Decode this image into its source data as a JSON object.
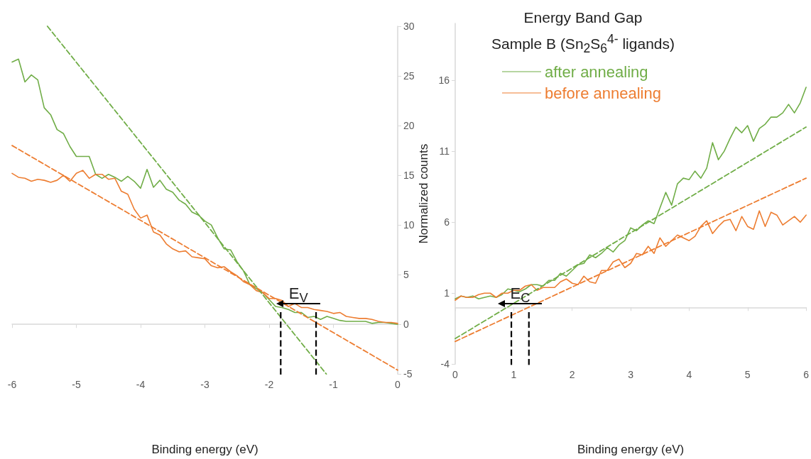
{
  "chart_data": [
    {
      "type": "line",
      "xlabel": "Binding energy (eV)",
      "xlim": [
        -6,
        0
      ],
      "xticks": [
        -6,
        -5,
        -4,
        -3,
        -2,
        -1,
        0
      ],
      "ylim": [
        -5,
        30
      ],
      "yticks": [
        -5,
        0,
        5,
        10,
        15,
        20,
        25,
        30
      ],
      "marker": "none",
      "series": [
        {
          "color": "#70ad47",
          "x": [
            -6.0,
            -5.9,
            -5.8,
            -5.7,
            -5.6,
            -5.5,
            -5.4,
            -5.3,
            -5.2,
            -5.1,
            -5.0,
            -4.9,
            -4.8,
            -4.7,
            -4.6,
            -4.5,
            -4.4,
            -4.3,
            -4.2,
            -4.1,
            -4.0,
            -3.9,
            -3.8,
            -3.7,
            -3.6,
            -3.5,
            -3.4,
            -3.3,
            -3.2,
            -3.1,
            -3.0,
            -2.9,
            -2.8,
            -2.7,
            -2.6,
            -2.5,
            -2.4,
            -2.3,
            -2.2,
            -2.1,
            -2.0,
            -1.9,
            -1.8,
            -1.7,
            -1.6,
            -1.5,
            -1.4,
            -1.3,
            -1.2,
            -1.1,
            -1.0,
            -0.9,
            -0.8,
            -0.7,
            -0.6,
            -0.5,
            -0.4,
            -0.3,
            -0.2,
            -0.1,
            0
          ],
          "values": [
            26.4,
            26.7,
            24.4,
            25.1,
            24.6,
            21.8,
            21.1,
            19.6,
            19.2,
            17.9,
            16.9,
            16.9,
            16.9,
            15.1,
            14.7,
            15.1,
            14.8,
            14.4,
            14.9,
            14.4,
            13.7,
            15.6,
            13.8,
            14.5,
            13.6,
            13.3,
            12.5,
            12.1,
            11.3,
            11.0,
            10.4,
            10.0,
            8.7,
            7.6,
            7.5,
            6.3,
            5.4,
            4.0,
            3.6,
            3.2,
            2.5,
            1.8,
            1.7,
            1.5,
            1.2,
            1.2,
            0.7,
            0.8,
            0.5,
            0.8,
            0.6,
            0.4,
            0.3,
            0.3,
            0.3,
            0.3,
            0.1,
            0.2,
            0.2,
            0.1,
            0.0
          ]
        },
        {
          "color": "#ed7d31",
          "x": [
            -6.0,
            -5.9,
            -5.8,
            -5.7,
            -5.6,
            -5.5,
            -5.4,
            -5.3,
            -5.2,
            -5.1,
            -5.0,
            -4.9,
            -4.8,
            -4.7,
            -4.6,
            -4.5,
            -4.4,
            -4.3,
            -4.2,
            -4.1,
            -4.0,
            -3.9,
            -3.8,
            -3.7,
            -3.6,
            -3.5,
            -3.4,
            -3.3,
            -3.2,
            -3.1,
            -3.0,
            -2.9,
            -2.8,
            -2.7,
            -2.6,
            -2.5,
            -2.4,
            -2.3,
            -2.2,
            -2.1,
            -2.0,
            -1.9,
            -1.8,
            -1.7,
            -1.6,
            -1.5,
            -1.4,
            -1.3,
            -1.2,
            -1.1,
            -1.0,
            -0.9,
            -0.8,
            -0.7,
            -0.6,
            -0.5,
            -0.4,
            -0.3,
            -0.2,
            -0.1,
            0
          ],
          "values": [
            15.2,
            14.8,
            14.7,
            14.4,
            14.6,
            14.5,
            14.3,
            14.5,
            15.0,
            14.4,
            15.2,
            15.5,
            14.7,
            15.1,
            15.1,
            14.6,
            14.7,
            13.4,
            13.1,
            11.6,
            10.7,
            11.0,
            9.3,
            9.0,
            8.1,
            7.6,
            7.3,
            7.4,
            6.8,
            6.7,
            6.6,
            5.9,
            5.7,
            5.8,
            5.3,
            4.9,
            4.3,
            4.0,
            3.4,
            3.2,
            2.6,
            2.6,
            2.4,
            1.8,
            2.1,
            1.7,
            1.7,
            1.5,
            1.4,
            1.3,
            1.1,
            1.2,
            0.8,
            0.7,
            0.6,
            0.6,
            0.5,
            0.3,
            0.2,
            0.2,
            0.1
          ]
        },
        {
          "color": "#70ad47",
          "line_style": "dashed",
          "x": [
            -5.45,
            -1.11
          ],
          "values": [
            30,
            -5
          ]
        },
        {
          "color": "#ed7d31",
          "line_style": "dashed",
          "x": [
            -6,
            0
          ],
          "values": [
            18.0,
            -4.6
          ]
        }
      ],
      "ref_lines": [
        {
          "axis": "x",
          "value": -1.82,
          "color": "#000000",
          "line_style": "dashed"
        },
        {
          "axis": "x",
          "value": -1.27,
          "color": "#000000",
          "line_style": "dashed"
        }
      ],
      "annotations": [
        "E$_{V}$"
      ]
    },
    {
      "type": "line",
      "title": "Energy Band Gap",
      "subtitle": "Sample B (Sn$_{2}$S$_{6}$$^{4-}$ ligands)",
      "xlabel": "Binding energy (eV)",
      "ylabel": "Normalized counts",
      "xlim": [
        0,
        6
      ],
      "xticks": [
        0,
        1,
        2,
        3,
        4,
        5,
        6
      ],
      "ylim": [
        -4,
        20
      ],
      "yticks": [
        -4,
        1,
        6,
        11,
        16
      ],
      "marker": "none",
      "legend": "top left",
      "series": [
        {
          "name": "after annealing",
          "color": "#70ad47",
          "x": [
            0,
            0.1,
            0.2,
            0.3,
            0.4,
            0.5,
            0.6,
            0.7,
            0.8,
            0.9,
            1.0,
            1.1,
            1.2,
            1.3,
            1.4,
            1.5,
            1.6,
            1.7,
            1.8,
            1.9,
            2.0,
            2.1,
            2.2,
            2.3,
            2.4,
            2.5,
            2.6,
            2.7,
            2.8,
            2.9,
            3.0,
            3.1,
            3.2,
            3.3,
            3.4,
            3.5,
            3.6,
            3.7,
            3.8,
            3.9,
            4.0,
            4.1,
            4.2,
            4.3,
            4.4,
            4.5,
            4.6,
            4.7,
            4.8,
            4.9,
            5.0,
            5.1,
            5.2,
            5.3,
            5.4,
            5.5,
            5.6,
            5.7,
            5.8,
            5.9,
            6.0
          ],
          "values": [
            0.6,
            0.8,
            0.7,
            0.8,
            0.6,
            0.7,
            0.8,
            0.7,
            0.9,
            1.3,
            1.2,
            1.1,
            1.3,
            1.6,
            1.6,
            1.5,
            1.9,
            1.9,
            2.4,
            2.2,
            2.6,
            3.0,
            3.1,
            3.7,
            3.5,
            3.8,
            4.2,
            3.9,
            4.4,
            4.7,
            5.6,
            5.4,
            5.8,
            6.1,
            5.9,
            7.0,
            8.1,
            7.2,
            8.7,
            9.1,
            9.0,
            9.6,
            9.1,
            9.8,
            11.6,
            10.4,
            11.0,
            11.9,
            12.7,
            12.3,
            12.8,
            11.7,
            12.6,
            12.9,
            13.4,
            13.4,
            13.7,
            14.3,
            13.7,
            14.4,
            15.5
          ]
        },
        {
          "name": "before annealing",
          "color": "#ed7d31",
          "x": [
            0,
            0.1,
            0.2,
            0.3,
            0.4,
            0.5,
            0.6,
            0.7,
            0.8,
            0.9,
            1.0,
            1.1,
            1.2,
            1.3,
            1.4,
            1.5,
            1.6,
            1.7,
            1.8,
            1.9,
            2.0,
            2.1,
            2.2,
            2.3,
            2.4,
            2.5,
            2.6,
            2.7,
            2.8,
            2.9,
            3.0,
            3.1,
            3.2,
            3.3,
            3.4,
            3.5,
            3.6,
            3.7,
            3.8,
            3.9,
            4.0,
            4.1,
            4.2,
            4.3,
            4.4,
            4.5,
            4.6,
            4.7,
            4.8,
            4.9,
            5.0,
            5.1,
            5.2,
            5.3,
            5.4,
            5.5,
            5.6,
            5.7,
            5.8,
            5.9,
            6.0
          ],
          "values": [
            0.5,
            0.8,
            0.7,
            0.7,
            0.9,
            1.0,
            1.0,
            0.7,
            1.0,
            1.0,
            1.2,
            1.2,
            1.5,
            1.6,
            1.2,
            1.4,
            1.4,
            1.4,
            1.8,
            2.0,
            1.7,
            1.6,
            2.2,
            1.8,
            1.7,
            2.6,
            2.6,
            3.2,
            3.4,
            2.8,
            3.1,
            3.8,
            3.7,
            4.3,
            3.8,
            4.9,
            4.3,
            4.7,
            5.1,
            4.9,
            4.7,
            5.0,
            5.7,
            6.1,
            5.2,
            5.7,
            6.1,
            6.2,
            5.4,
            6.4,
            5.7,
            5.5,
            6.8,
            5.7,
            6.7,
            6.5,
            5.8,
            6.1,
            6.4,
            6.0,
            6.5
          ]
        },
        {
          "color": "#70ad47",
          "line_style": "dashed",
          "x": [
            0,
            6
          ],
          "values": [
            -2.2,
            12.7
          ]
        },
        {
          "color": "#ed7d31",
          "line_style": "dashed",
          "x": [
            0,
            6
          ],
          "values": [
            -2.4,
            9.1
          ]
        }
      ],
      "ref_lines": [
        {
          "axis": "x",
          "value": 0.96,
          "color": "#000000",
          "line_style": "dashed"
        },
        {
          "axis": "x",
          "value": 1.26,
          "color": "#000000",
          "line_style": "dashed"
        }
      ],
      "annotations": [
        "E$_{C}$"
      ]
    }
  ]
}
